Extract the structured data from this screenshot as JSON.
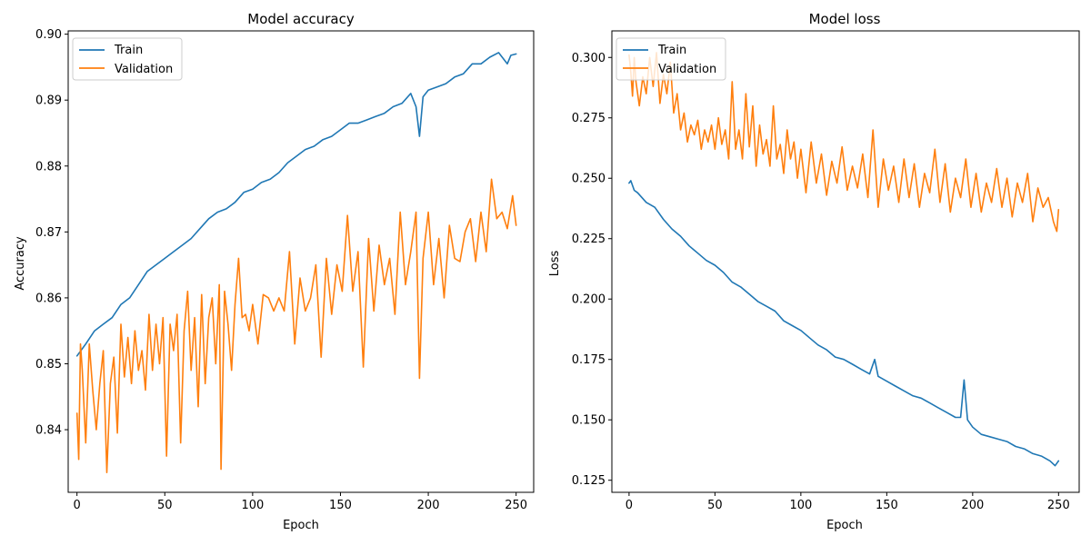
{
  "colors": {
    "train": "#1f77b4",
    "validation": "#ff7f0e"
  },
  "chart_data": [
    {
      "type": "line",
      "title": "Model accuracy",
      "xlabel": "Epoch",
      "ylabel": "Accuracy",
      "xlim": [
        -5,
        260
      ],
      "ylim": [
        0.8305,
        0.9005
      ],
      "xticks": [
        0,
        50,
        100,
        150,
        200,
        250
      ],
      "yticks": [
        0.84,
        0.85,
        0.86,
        0.87,
        0.88,
        0.89,
        0.9
      ],
      "ytick_labels": [
        "0.84",
        "0.85",
        "0.86",
        "0.87",
        "0.88",
        "0.89",
        "0.90"
      ],
      "grid": false,
      "legend": "upper left",
      "series": [
        {
          "name": "Train",
          "color_key": "train",
          "x": [
            0,
            5,
            10,
            15,
            20,
            25,
            30,
            35,
            40,
            45,
            50,
            55,
            60,
            65,
            70,
            75,
            80,
            85,
            90,
            95,
            100,
            105,
            110,
            115,
            120,
            125,
            130,
            135,
            140,
            145,
            150,
            155,
            160,
            165,
            170,
            175,
            180,
            185,
            190,
            193,
            195,
            197,
            200,
            205,
            210,
            215,
            220,
            225,
            230,
            235,
            240,
            245,
            247,
            250
          ],
          "y": [
            0.8512,
            0.853,
            0.855,
            0.856,
            0.857,
            0.859,
            0.86,
            0.862,
            0.864,
            0.865,
            0.866,
            0.867,
            0.868,
            0.869,
            0.8705,
            0.872,
            0.873,
            0.8735,
            0.8745,
            0.876,
            0.8765,
            0.8775,
            0.878,
            0.879,
            0.8805,
            0.8815,
            0.8825,
            0.883,
            0.884,
            0.8845,
            0.8855,
            0.8865,
            0.8865,
            0.887,
            0.8875,
            0.888,
            0.889,
            0.8895,
            0.891,
            0.889,
            0.8845,
            0.8905,
            0.8915,
            0.892,
            0.8925,
            0.8935,
            0.894,
            0.8955,
            0.8955,
            0.8965,
            0.8972,
            0.8955,
            0.8968,
            0.897
          ]
        },
        {
          "name": "Validation",
          "color_key": "validation",
          "x": [
            0,
            1,
            2,
            3,
            5,
            7,
            9,
            11,
            13,
            15,
            17,
            19,
            21,
            23,
            25,
            27,
            29,
            31,
            33,
            35,
            37,
            39,
            41,
            43,
            45,
            47,
            49,
            51,
            53,
            55,
            57,
            59,
            61,
            63,
            65,
            67,
            69,
            71,
            73,
            75,
            77,
            79,
            81,
            82,
            84,
            86,
            88,
            90,
            92,
            94,
            96,
            98,
            100,
            103,
            106,
            109,
            112,
            115,
            118,
            121,
            124,
            127,
            130,
            133,
            136,
            139,
            142,
            145,
            148,
            151,
            154,
            157,
            160,
            163,
            166,
            169,
            172,
            175,
            178,
            181,
            184,
            187,
            190,
            193,
            195,
            197,
            200,
            203,
            206,
            209,
            212,
            215,
            218,
            221,
            224,
            227,
            230,
            233,
            236,
            239,
            242,
            245,
            248,
            250
          ],
          "y": [
            0.8425,
            0.8355,
            0.853,
            0.849,
            0.838,
            0.853,
            0.846,
            0.84,
            0.847,
            0.852,
            0.8335,
            0.847,
            0.851,
            0.8395,
            0.856,
            0.848,
            0.854,
            0.847,
            0.855,
            0.849,
            0.852,
            0.846,
            0.8575,
            0.849,
            0.856,
            0.85,
            0.857,
            0.836,
            0.856,
            0.852,
            0.8575,
            0.838,
            0.855,
            0.861,
            0.849,
            0.857,
            0.8435,
            0.8605,
            0.847,
            0.857,
            0.86,
            0.85,
            0.862,
            0.834,
            0.861,
            0.856,
            0.849,
            0.859,
            0.866,
            0.857,
            0.8575,
            0.855,
            0.859,
            0.853,
            0.8605,
            0.86,
            0.858,
            0.86,
            0.858,
            0.867,
            0.853,
            0.863,
            0.858,
            0.86,
            0.865,
            0.851,
            0.866,
            0.8575,
            0.865,
            0.861,
            0.8725,
            0.861,
            0.867,
            0.8495,
            0.869,
            0.858,
            0.868,
            0.862,
            0.866,
            0.8575,
            0.873,
            0.862,
            0.867,
            0.873,
            0.8478,
            0.866,
            0.873,
            0.862,
            0.869,
            0.86,
            0.871,
            0.866,
            0.8655,
            0.87,
            0.872,
            0.8655,
            0.873,
            0.867,
            0.878,
            0.872,
            0.873,
            0.8705,
            0.8755,
            0.871
          ]
        }
      ]
    },
    {
      "type": "line",
      "title": "Model loss",
      "xlabel": "Epoch",
      "ylabel": "Loss",
      "xlim": [
        -10,
        262
      ],
      "ylim": [
        0.12,
        0.311
      ],
      "xticks": [
        0,
        50,
        100,
        150,
        200,
        250
      ],
      "yticks": [
        0.125,
        0.15,
        0.175,
        0.2,
        0.225,
        0.25,
        0.275,
        0.3
      ],
      "ytick_labels": [
        "0.125",
        "0.150",
        "0.175",
        "0.200",
        "0.225",
        "0.250",
        "0.275",
        "0.300"
      ],
      "grid": false,
      "legend": "upper left",
      "series": [
        {
          "name": "Train",
          "color_key": "train",
          "x": [
            0,
            1,
            3,
            5,
            10,
            15,
            20,
            25,
            30,
            35,
            40,
            45,
            50,
            55,
            60,
            65,
            70,
            75,
            80,
            85,
            90,
            95,
            100,
            105,
            110,
            115,
            120,
            125,
            130,
            135,
            140,
            143,
            145,
            150,
            155,
            160,
            165,
            170,
            175,
            180,
            185,
            190,
            193,
            195,
            197,
            200,
            205,
            210,
            215,
            220,
            225,
            230,
            235,
            240,
            245,
            248,
            250
          ],
          "y": [
            0.248,
            0.249,
            0.245,
            0.244,
            0.24,
            0.238,
            0.233,
            0.229,
            0.226,
            0.222,
            0.219,
            0.216,
            0.214,
            0.211,
            0.207,
            0.205,
            0.202,
            0.199,
            0.197,
            0.195,
            0.191,
            0.189,
            0.187,
            0.184,
            0.181,
            0.179,
            0.176,
            0.175,
            0.173,
            0.171,
            0.169,
            0.175,
            0.168,
            0.166,
            0.164,
            0.162,
            0.16,
            0.159,
            0.157,
            0.155,
            0.153,
            0.151,
            0.151,
            0.1665,
            0.15,
            0.147,
            0.144,
            0.143,
            0.142,
            0.141,
            0.139,
            0.138,
            0.136,
            0.135,
            0.133,
            0.131,
            0.133
          ]
        },
        {
          "name": "Validation",
          "color_key": "validation",
          "x": [
            0,
            1,
            2,
            3,
            4,
            6,
            8,
            10,
            12,
            14,
            16,
            18,
            20,
            22,
            24,
            26,
            28,
            30,
            32,
            34,
            36,
            38,
            40,
            42,
            44,
            46,
            48,
            50,
            52,
            54,
            56,
            58,
            60,
            62,
            64,
            66,
            68,
            70,
            72,
            74,
            76,
            78,
            80,
            82,
            84,
            86,
            88,
            90,
            92,
            94,
            96,
            98,
            100,
            103,
            106,
            109,
            112,
            115,
            118,
            121,
            124,
            127,
            130,
            133,
            136,
            139,
            142,
            145,
            148,
            151,
            154,
            157,
            160,
            163,
            166,
            169,
            172,
            175,
            178,
            181,
            184,
            187,
            190,
            193,
            196,
            199,
            202,
            205,
            208,
            211,
            214,
            217,
            220,
            223,
            226,
            229,
            232,
            235,
            238,
            241,
            244,
            247,
            249,
            250
          ],
          "y": [
            0.301,
            0.294,
            0.284,
            0.3,
            0.29,
            0.28,
            0.292,
            0.285,
            0.3,
            0.288,
            0.302,
            0.281,
            0.293,
            0.285,
            0.298,
            0.277,
            0.285,
            0.27,
            0.277,
            0.265,
            0.272,
            0.268,
            0.274,
            0.262,
            0.27,
            0.265,
            0.272,
            0.262,
            0.275,
            0.264,
            0.27,
            0.258,
            0.29,
            0.262,
            0.27,
            0.258,
            0.285,
            0.263,
            0.28,
            0.255,
            0.272,
            0.26,
            0.266,
            0.255,
            0.28,
            0.258,
            0.264,
            0.252,
            0.27,
            0.258,
            0.265,
            0.25,
            0.262,
            0.244,
            0.265,
            0.248,
            0.26,
            0.243,
            0.257,
            0.248,
            0.263,
            0.245,
            0.255,
            0.246,
            0.26,
            0.242,
            0.27,
            0.238,
            0.258,
            0.245,
            0.255,
            0.24,
            0.258,
            0.242,
            0.256,
            0.238,
            0.252,
            0.244,
            0.262,
            0.24,
            0.256,
            0.236,
            0.25,
            0.242,
            0.258,
            0.238,
            0.252,
            0.236,
            0.248,
            0.24,
            0.254,
            0.238,
            0.25,
            0.234,
            0.248,
            0.24,
            0.252,
            0.232,
            0.246,
            0.238,
            0.242,
            0.232,
            0.228,
            0.237
          ]
        }
      ]
    }
  ]
}
